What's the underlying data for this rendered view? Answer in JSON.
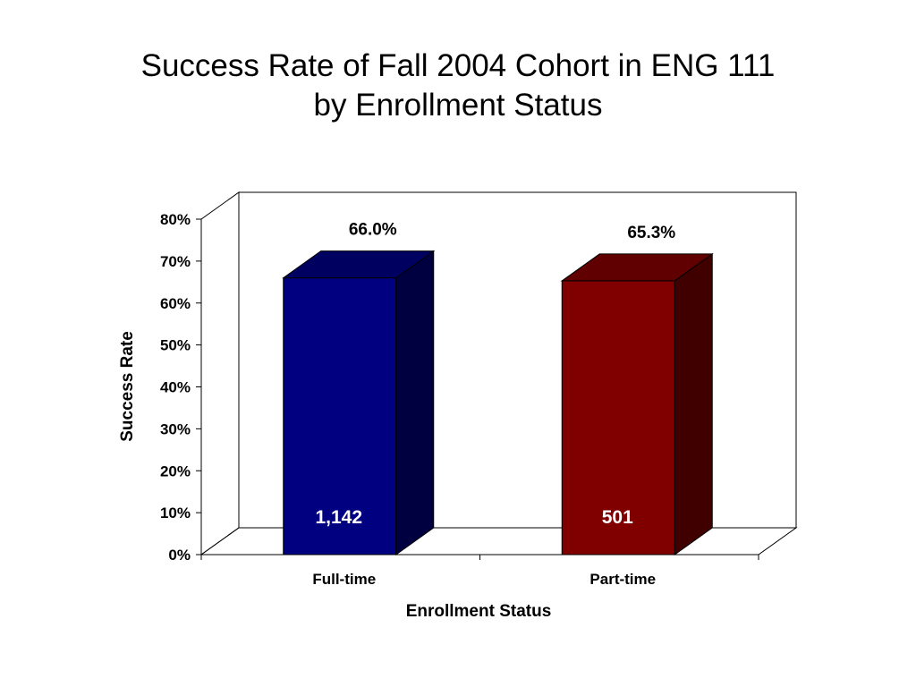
{
  "title_line1": "Success Rate of Fall 2004 Cohort in ENG 111",
  "title_line2": "by Enrollment Status",
  "chart_data": {
    "type": "bar",
    "style": "3d",
    "categories": [
      "Full-time",
      "Part-time"
    ],
    "values": [
      66.0,
      65.3
    ],
    "value_labels": [
      "66.0%",
      "65.3%"
    ],
    "counts": [
      "1,142",
      "501"
    ],
    "colors": [
      "#000080",
      "#800000"
    ],
    "xlabel": "Enrollment Status",
    "ylabel": "Success Rate",
    "ylim": [
      0,
      80
    ],
    "yticks": [
      "0%",
      "10%",
      "20%",
      "30%",
      "40%",
      "50%",
      "60%",
      "70%",
      "80%"
    ],
    "grid": false,
    "legend": "none"
  }
}
